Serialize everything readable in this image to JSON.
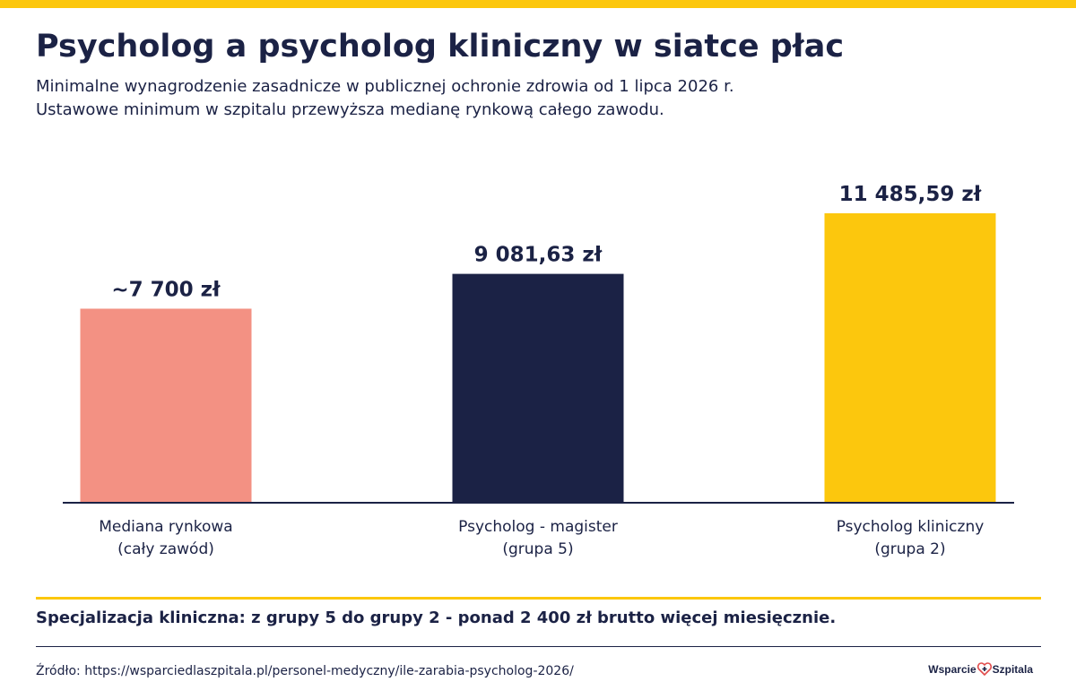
{
  "header": {
    "title": "Psycholog a psycholog kliniczny w siatce płac",
    "subtitle_line1": "Minimalne wynagrodzenie zasadnicze w publicznej ochronie zdrowia od 1 lipca 2026 r.",
    "subtitle_line2": "Ustawowe minimum w szpitalu przewyższa medianę rynkową całego zawodu."
  },
  "chart_data": {
    "type": "bar",
    "categories": [
      [
        "Mediana rynkowa",
        "(cały zawód)"
      ],
      [
        "Psycholog - magister",
        "(grupa 5)"
      ],
      [
        "Psycholog kliniczny",
        "(grupa 2)"
      ]
    ],
    "values": [
      7700,
      9081.63,
      11485.59
    ],
    "data_labels": [
      "~7 700 zł",
      "9 081,63 zł",
      "11 485,59 zł"
    ],
    "colors": [
      "#f39183",
      "#1b2245",
      "#fcc70d"
    ],
    "ylim": [
      0,
      11485.59
    ],
    "grid": false
  },
  "footer": {
    "note": "Specjalizacja kliniczna: z grupy 5 do grupy 2 - ponad 2 400 zł brutto więcej miesięcznie.",
    "source": "Źródło: https://wsparciedlaszpitala.pl/personel-medyczny/ile-zarabia-psycholog-2026/",
    "logo_left": "Wsparcie",
    "logo_right": "Szpitala"
  },
  "theme": {
    "accent": "#fcc70d",
    "text": "#1b2245"
  }
}
